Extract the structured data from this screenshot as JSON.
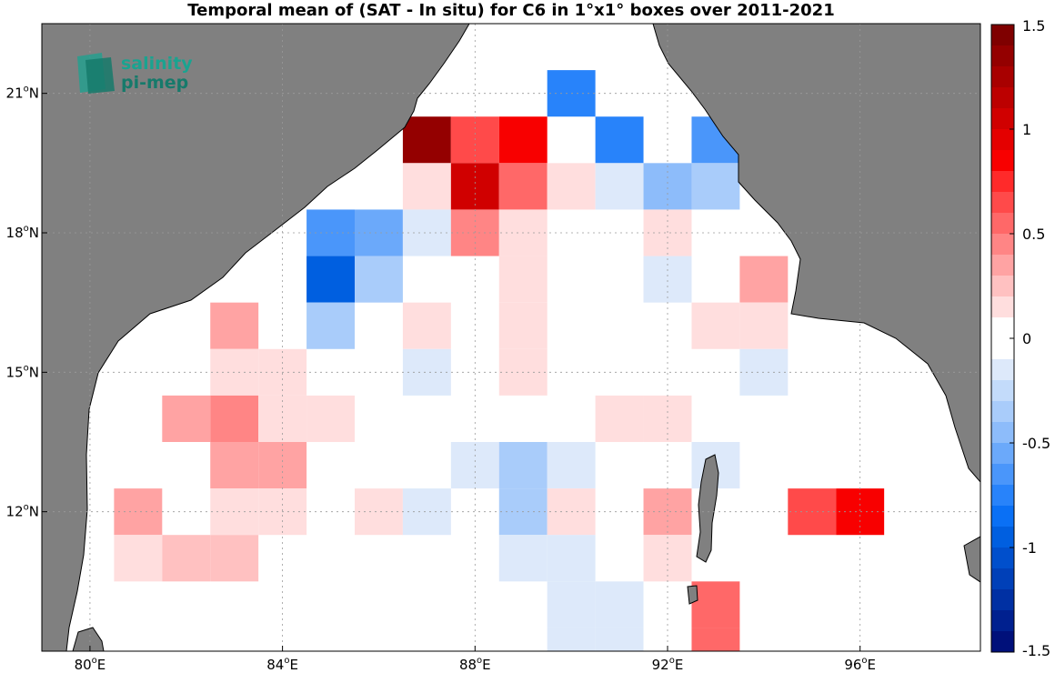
{
  "title": "Temporal mean of (SAT - In situ) for C6 in 1°x1° boxes over 2011-2021",
  "logo": {
    "line1": "salinity",
    "line2": "pi-mep"
  },
  "colors": {
    "land": "#808080",
    "ocean": "#ffffff",
    "coast": "#000000",
    "grid": "#9a9a9a"
  },
  "map": {
    "lon_range": [
      79,
      98.5
    ],
    "lat_range": [
      9,
      22.5
    ],
    "x_ticks": [
      {
        "value": 80,
        "label": "80"
      },
      {
        "value": 84,
        "label": "84"
      },
      {
        "value": 88,
        "label": "88"
      },
      {
        "value": 92,
        "label": "92"
      },
      {
        "value": 96,
        "label": "96"
      }
    ],
    "y_ticks": [
      {
        "value": 21,
        "label": "21"
      },
      {
        "value": 18,
        "label": "18"
      },
      {
        "value": 15,
        "label": "15"
      },
      {
        "value": 12,
        "label": "12"
      }
    ],
    "x_suffix": "E",
    "y_suffix": "N",
    "grid": true
  },
  "colorbar": {
    "range": [
      -1.5,
      1.5
    ],
    "ticks": [
      {
        "value": 1.5,
        "label": "1.5"
      },
      {
        "value": 1,
        "label": "1"
      },
      {
        "value": 0.5,
        "label": "0.5"
      },
      {
        "value": 0,
        "label": "0"
      },
      {
        "value": -0.5,
        "label": "-0.5"
      },
      {
        "value": -1,
        "label": "-1"
      },
      {
        "value": -1.5,
        "label": "-1.5"
      }
    ],
    "levels": [
      {
        "from": 1.4,
        "color": "#7f0000"
      },
      {
        "from": 1.3,
        "color": "#940000"
      },
      {
        "from": 1.2,
        "color": "#a80000"
      },
      {
        "from": 1.1,
        "color": "#bc0000"
      },
      {
        "from": 1.0,
        "color": "#d00000"
      },
      {
        "from": 0.9,
        "color": "#e40000"
      },
      {
        "from": 0.8,
        "color": "#f80000"
      },
      {
        "from": 0.7,
        "color": "#ff2a2a"
      },
      {
        "from": 0.6,
        "color": "#ff4a4a"
      },
      {
        "from": 0.5,
        "color": "#ff6868"
      },
      {
        "from": 0.4,
        "color": "#ff8585"
      },
      {
        "from": 0.3,
        "color": "#ffa3a3"
      },
      {
        "from": 0.2,
        "color": "#ffc1c1"
      },
      {
        "from": 0.1,
        "color": "#ffdede"
      },
      {
        "from": 0.0,
        "color": "#ffffff"
      },
      {
        "from": -0.1,
        "color": "#ffffff"
      },
      {
        "from": -0.2,
        "color": "#dde9fa"
      },
      {
        "from": -0.3,
        "color": "#c3dbfa"
      },
      {
        "from": -0.4,
        "color": "#a9ccfa"
      },
      {
        "from": -0.5,
        "color": "#8dbcfa"
      },
      {
        "from": -0.6,
        "color": "#6ba9fa"
      },
      {
        "from": -0.7,
        "color": "#4a96fa"
      },
      {
        "from": -0.8,
        "color": "#2883fa"
      },
      {
        "from": -0.9,
        "color": "#0a70f5"
      },
      {
        "from": -1.0,
        "color": "#005fe0"
      },
      {
        "from": -1.1,
        "color": "#004fcc"
      },
      {
        "from": -1.2,
        "color": "#0040b8"
      },
      {
        "from": -1.3,
        "color": "#0030a3"
      },
      {
        "from": -1.4,
        "color": "#00208f"
      },
      {
        "from": -1.5,
        "color": "#00107a"
      }
    ]
  },
  "chart_data": {
    "type": "heatmap",
    "title": "Temporal mean of (SAT - In situ) for C6 in 1°x1° boxes over 2011-2021",
    "cell_size_deg": 1,
    "cells": [
      {
        "lon": 90,
        "lat": 21,
        "value": -0.75
      },
      {
        "lon": 87,
        "lat": 20,
        "value": 1.3
      },
      {
        "lon": 88,
        "lat": 20,
        "value": 0.62
      },
      {
        "lon": 89,
        "lat": 20,
        "value": 0.85
      },
      {
        "lon": 91,
        "lat": 20,
        "value": -0.75
      },
      {
        "lon": 93,
        "lat": 20,
        "value": -0.7
      },
      {
        "lon": 87,
        "lat": 19,
        "value": 0.15
      },
      {
        "lon": 88,
        "lat": 19,
        "value": 1.0
      },
      {
        "lon": 89,
        "lat": 19,
        "value": 0.5
      },
      {
        "lon": 90,
        "lat": 19,
        "value": 0.15
      },
      {
        "lon": 91,
        "lat": 19,
        "value": -0.15
      },
      {
        "lon": 92,
        "lat": 19,
        "value": -0.45
      },
      {
        "lon": 93,
        "lat": 19,
        "value": -0.35
      },
      {
        "lon": 85,
        "lat": 18,
        "value": -0.65
      },
      {
        "lon": 86,
        "lat": 18,
        "value": -0.55
      },
      {
        "lon": 87,
        "lat": 18,
        "value": -0.15
      },
      {
        "lon": 88,
        "lat": 18,
        "value": 0.4
      },
      {
        "lon": 89,
        "lat": 18,
        "value": 0.15
      },
      {
        "lon": 92,
        "lat": 18,
        "value": 0.15
      },
      {
        "lon": 85,
        "lat": 17,
        "value": -0.95
      },
      {
        "lon": 86,
        "lat": 17,
        "value": -0.35
      },
      {
        "lon": 89,
        "lat": 17,
        "value": 0.15
      },
      {
        "lon": 92,
        "lat": 17,
        "value": -0.15
      },
      {
        "lon": 94,
        "lat": 17,
        "value": 0.3
      },
      {
        "lon": 83,
        "lat": 16,
        "value": 0.3
      },
      {
        "lon": 85,
        "lat": 16,
        "value": -0.35
      },
      {
        "lon": 87,
        "lat": 16,
        "value": 0.15
      },
      {
        "lon": 89,
        "lat": 16,
        "value": 0.15
      },
      {
        "lon": 93,
        "lat": 16,
        "value": 0.15
      },
      {
        "lon": 94,
        "lat": 16,
        "value": 0.15
      },
      {
        "lon": 83,
        "lat": 15,
        "value": 0.15
      },
      {
        "lon": 84,
        "lat": 15,
        "value": 0.15
      },
      {
        "lon": 87,
        "lat": 15,
        "value": -0.15
      },
      {
        "lon": 89,
        "lat": 15,
        "value": 0.15
      },
      {
        "lon": 94,
        "lat": 15,
        "value": -0.15
      },
      {
        "lon": 82,
        "lat": 14,
        "value": 0.3
      },
      {
        "lon": 83,
        "lat": 14,
        "value": 0.45
      },
      {
        "lon": 84,
        "lat": 14,
        "value": 0.15
      },
      {
        "lon": 85,
        "lat": 14,
        "value": 0.15
      },
      {
        "lon": 91,
        "lat": 14,
        "value": 0.15
      },
      {
        "lon": 92,
        "lat": 14,
        "value": 0.15
      },
      {
        "lon": 83,
        "lat": 13,
        "value": 0.3
      },
      {
        "lon": 84,
        "lat": 13,
        "value": 0.3
      },
      {
        "lon": 88,
        "lat": 13,
        "value": -0.15
      },
      {
        "lon": 89,
        "lat": 13,
        "value": -0.35
      },
      {
        "lon": 90,
        "lat": 13,
        "value": -0.15
      },
      {
        "lon": 93,
        "lat": 13,
        "value": -0.15
      },
      {
        "lon": 81,
        "lat": 12,
        "value": 0.3
      },
      {
        "lon": 83,
        "lat": 12,
        "value": 0.15
      },
      {
        "lon": 84,
        "lat": 12,
        "value": 0.15
      },
      {
        "lon": 86,
        "lat": 12,
        "value": 0.15
      },
      {
        "lon": 87,
        "lat": 12,
        "value": -0.15
      },
      {
        "lon": 89,
        "lat": 12,
        "value": -0.35
      },
      {
        "lon": 90,
        "lat": 12,
        "value": 0.15
      },
      {
        "lon": 92,
        "lat": 12,
        "value": 0.3
      },
      {
        "lon": 95,
        "lat": 12,
        "value": 0.6
      },
      {
        "lon": 96,
        "lat": 12,
        "value": 0.8
      },
      {
        "lon": 81,
        "lat": 11,
        "value": 0.15
      },
      {
        "lon": 82,
        "lat": 11,
        "value": 0.25
      },
      {
        "lon": 83,
        "lat": 11,
        "value": 0.25
      },
      {
        "lon": 89,
        "lat": 11,
        "value": -0.15
      },
      {
        "lon": 90,
        "lat": 11,
        "value": -0.15
      },
      {
        "lon": 92,
        "lat": 11,
        "value": 0.15
      },
      {
        "lon": 90,
        "lat": 10,
        "value": -0.15
      },
      {
        "lon": 91,
        "lat": 10,
        "value": -0.15
      },
      {
        "lon": 93,
        "lat": 10,
        "value": 0.55
      },
      {
        "lon": 90,
        "lat": 9,
        "value": -0.15
      },
      {
        "lon": 91,
        "lat": 9,
        "value": -0.15
      },
      {
        "lon": 93,
        "lat": 9,
        "value": 0.55
      }
    ]
  }
}
